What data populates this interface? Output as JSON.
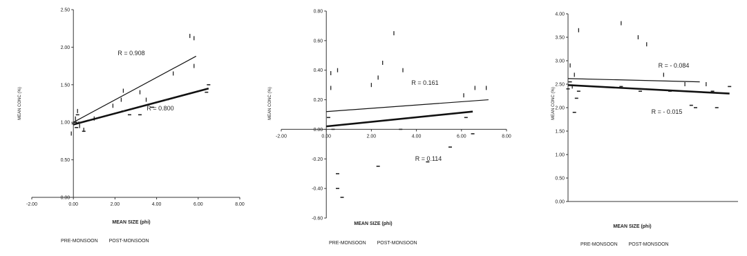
{
  "chart_data": [
    {
      "type": "scatter",
      "xlabel": "MEAN SIZE (phi)",
      "ylabel": "MEAN CONC (%)",
      "xlim": [
        -2,
        8
      ],
      "ylim": [
        0,
        2.5
      ],
      "xticks": [
        "-2.00",
        "0.00",
        "2.00",
        "4.00",
        "6.00",
        "8.00"
      ],
      "yticks": [
        "0.00",
        "0.50",
        "1.00",
        "1.50",
        "2.00",
        "2.50"
      ],
      "legend": [
        "PRE-MONSOON",
        "POST-MONSOON"
      ],
      "series": [
        {
          "name": "PRE-MONSOON",
          "line": [
            [
              0,
              1.0
            ],
            [
              5.9,
              1.88
            ]
          ],
          "points": [
            [
              0.1,
              1.05
            ],
            [
              0.2,
              1.15
            ],
            [
              0.3,
              0.95
            ],
            [
              0.5,
              0.9
            ],
            [
              1.0,
              1.05
            ],
            [
              1.9,
              1.22
            ],
            [
              2.3,
              1.3
            ],
            [
              2.4,
              1.42
            ],
            [
              3.2,
              1.4
            ],
            [
              3.5,
              1.3
            ],
            [
              4.8,
              1.65
            ],
            [
              5.8,
              1.75
            ],
            [
              5.6,
              2.15
            ],
            [
              5.8,
              2.12
            ],
            [
              -0.1,
              0.85
            ]
          ]
        },
        {
          "name": "POST-MONSOON",
          "line": [
            [
              0,
              0.97
            ],
            [
              6.5,
              1.45
            ]
          ],
          "points": [
            [
              0.0,
              0.98
            ],
            [
              0.1,
              1.0
            ],
            [
              0.15,
              0.93
            ],
            [
              0.2,
              1.1
            ],
            [
              0.3,
              1.0
            ],
            [
              0.5,
              0.88
            ],
            [
              2.4,
              1.15
            ],
            [
              2.7,
              1.1
            ],
            [
              3.2,
              1.1
            ],
            [
              3.8,
              1.2
            ],
            [
              4.5,
              1.3
            ],
            [
              6.4,
              1.4
            ],
            [
              6.5,
              1.5
            ]
          ]
        }
      ],
      "r_labels": [
        "R = 0.908",
        "R = 0.800"
      ]
    },
    {
      "type": "scatter",
      "xlabel": "MEAN SIZE (phi)",
      "ylabel": "MEAN CONC (%)",
      "xlim": [
        -2,
        8
      ],
      "ylim": [
        -0.6,
        0.8
      ],
      "xticks": [
        "-2.00",
        "0.00",
        "2.00",
        "4.00",
        "6.00",
        "8.00"
      ],
      "yticks": [
        "-0.60",
        "-0.40",
        "-0.20",
        "0.00",
        "0.20",
        "0.40",
        "0.60",
        "0.80"
      ],
      "legend": [
        "PRE-MONSOON",
        "POST-MONSOON"
      ],
      "series": [
        {
          "name": "PRE-MONSOON",
          "line": [
            [
              0,
              0.12
            ],
            [
              7.2,
              0.2
            ]
          ],
          "points": [
            [
              0.2,
              0.38
            ],
            [
              0.5,
              0.4
            ],
            [
              2.0,
              0.3
            ],
            [
              2.3,
              0.35
            ],
            [
              2.5,
              0.45
            ],
            [
              3.0,
              0.65
            ],
            [
              3.4,
              0.4
            ],
            [
              6.1,
              0.23
            ],
            [
              6.6,
              0.28
            ],
            [
              7.1,
              0.28
            ],
            [
              0.2,
              0.28
            ]
          ]
        },
        {
          "name": "POST-MONSOON",
          "line": [
            [
              0,
              0.02
            ],
            [
              6.5,
              0.12
            ]
          ],
          "points": [
            [
              0.1,
              0.08
            ],
            [
              0.3,
              0.0
            ],
            [
              0.5,
              -0.3
            ],
            [
              0.5,
              -0.4
            ],
            [
              0.7,
              -0.46
            ],
            [
              2.3,
              -0.25
            ],
            [
              3.3,
              0.0
            ],
            [
              4.5,
              -0.22
            ],
            [
              5.5,
              -0.12
            ],
            [
              6.2,
              0.08
            ],
            [
              6.5,
              -0.03
            ]
          ]
        }
      ],
      "r_labels": [
        "R = 0.161",
        "R = 0.114"
      ]
    },
    {
      "type": "scatter",
      "xlabel": "MEAN SIZE (phi)",
      "ylabel": "MEAN CONC (%)",
      "xlim": [
        0,
        8
      ],
      "ylim": [
        0,
        4
      ],
      "yticks": [
        "0.00",
        "0.50",
        "1.00",
        "1.50",
        "2.00",
        "2.50",
        "3.00",
        "3.50",
        "4.00"
      ],
      "legend": [
        "PRE-MONSOON",
        "POST-MONSOON"
      ],
      "series": [
        {
          "name": "PRE-MONSOON",
          "line": [
            [
              0,
              2.62
            ],
            [
              6.2,
              2.55
            ]
          ],
          "points": [
            [
              0.1,
              2.9
            ],
            [
              0.3,
              2.7
            ],
            [
              0.5,
              3.65
            ],
            [
              2.5,
              3.8
            ],
            [
              3.3,
              3.5
            ],
            [
              3.7,
              3.35
            ],
            [
              4.5,
              2.7
            ],
            [
              5.5,
              2.5
            ],
            [
              6.5,
              2.5
            ],
            [
              0.2,
              2.45
            ]
          ]
        },
        {
          "name": "POST-MONSOON",
          "line": [
            [
              0,
              2.48
            ],
            [
              7.6,
              2.3
            ]
          ],
          "points": [
            [
              0.0,
              2.4
            ],
            [
              0.1,
              2.55
            ],
            [
              0.3,
              1.9
            ],
            [
              0.4,
              2.2
            ],
            [
              0.5,
              2.35
            ],
            [
              2.5,
              2.45
            ],
            [
              3.4,
              2.35
            ],
            [
              4.8,
              2.35
            ],
            [
              5.8,
              2.05
            ],
            [
              6.0,
              2.0
            ],
            [
              6.8,
              2.35
            ],
            [
              7.0,
              2.0
            ],
            [
              7.6,
              2.45
            ]
          ]
        }
      ],
      "r_labels": [
        "R = - 0.084",
        "R = - 0.015"
      ]
    }
  ]
}
